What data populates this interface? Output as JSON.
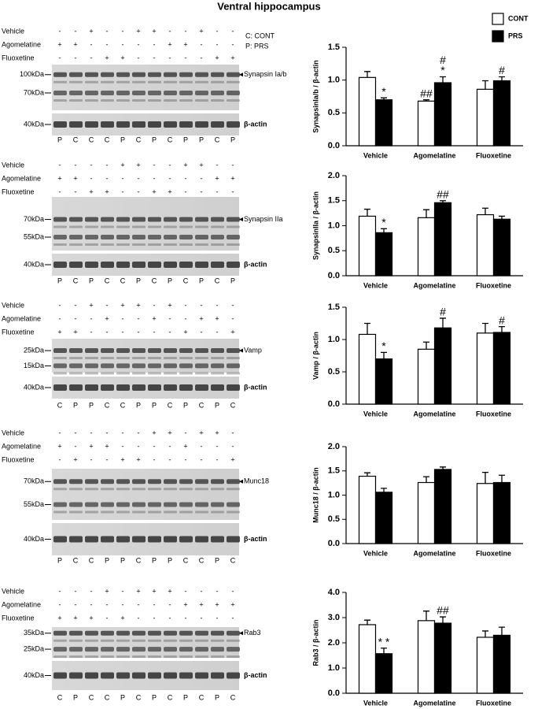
{
  "title": "Ventral hippocampus",
  "notes": [
    "C: CONT",
    "P: PRS"
  ],
  "blots": [
    {
      "rows": [
        {
          "label": "Vehicle",
          "signs": [
            "-",
            "-",
            "+",
            "-",
            "-",
            "+",
            "+",
            "-",
            "-",
            "+",
            "-",
            "-"
          ]
        },
        {
          "label": "Agomelatine",
          "signs": [
            "+",
            "+",
            "-",
            "-",
            "-",
            "-",
            "-",
            "+",
            "+",
            "-",
            "-",
            "-"
          ]
        },
        {
          "label": "Fluoxetine",
          "signs": [
            "-",
            "-",
            "-",
            "+",
            "+",
            "-",
            "-",
            "-",
            "-",
            "-",
            "+",
            "+"
          ]
        }
      ],
      "markers": [
        "100kDa",
        "70kDa"
      ],
      "protein": "Synapsin Ia/b",
      "actin_marker": "40kDa",
      "actin": "β-actin",
      "lanes": [
        "P",
        "C",
        "C",
        "C",
        "P",
        "C",
        "P",
        "C",
        "P",
        "P",
        "C",
        "P"
      ]
    },
    {
      "rows": [
        {
          "label": "Vehicle",
          "signs": [
            "-",
            "-",
            "-",
            "-",
            "+",
            "+",
            "-",
            "-",
            "+",
            "+",
            "-",
            "-"
          ]
        },
        {
          "label": "Agomelatine",
          "signs": [
            "+",
            "+",
            "-",
            "-",
            "-",
            "-",
            "-",
            "-",
            "-",
            "-",
            "+",
            "+"
          ]
        },
        {
          "label": "Fluoxetine",
          "signs": [
            "-",
            "-",
            "+",
            "+",
            "-",
            "-",
            "+",
            "+",
            "-",
            "-",
            "-",
            "-"
          ]
        }
      ],
      "markers": [
        "70kDa",
        "55kDa"
      ],
      "protein": "Synapsin IIa",
      "actin_marker": "40kDa",
      "actin": "β-actin",
      "lanes": [
        "P",
        "C",
        "P",
        "C",
        "C",
        "P",
        "C",
        "P",
        "C",
        "P",
        "C",
        "P"
      ]
    },
    {
      "rows": [
        {
          "label": "Vehicle",
          "signs": [
            "-",
            "-",
            "+",
            "-",
            "+",
            "+",
            "-",
            "+",
            "-",
            "-",
            "-",
            "-"
          ]
        },
        {
          "label": "Agomelatine",
          "signs": [
            "-",
            "-",
            "-",
            "+",
            "-",
            "-",
            "+",
            "-",
            "-",
            "+",
            "+",
            "-"
          ]
        },
        {
          "label": "Fluoxetine",
          "signs": [
            "+",
            "+",
            "-",
            "-",
            "-",
            "-",
            "-",
            "-",
            "+",
            "-",
            "-",
            "+"
          ]
        }
      ],
      "markers": [
        "25kDa",
        "15kDa"
      ],
      "protein": "Vamp",
      "actin_marker": "40kDa",
      "actin": "β-actin",
      "lanes": [
        "C",
        "P",
        "P",
        "C",
        "C",
        "P",
        "P",
        "C",
        "P",
        "C",
        "P",
        "C"
      ]
    },
    {
      "rows": [
        {
          "label": "Vehicle",
          "signs": [
            "-",
            "-",
            "-",
            "-",
            "-",
            "-",
            "+",
            "+",
            "-",
            "+",
            "+",
            "-"
          ]
        },
        {
          "label": "Agomelatine",
          "signs": [
            "+",
            "-",
            "+",
            "+",
            "-",
            "-",
            "-",
            "-",
            "+",
            "-",
            "-",
            "-"
          ]
        },
        {
          "label": "Fluoxetine",
          "signs": [
            "-",
            "+",
            "-",
            "-",
            "+",
            "+",
            "-",
            "-",
            "-",
            "-",
            "-",
            "+"
          ]
        }
      ],
      "markers": [
        "70kDa",
        "55kDa"
      ],
      "protein": "Munc18",
      "actin_marker": "40kDa",
      "actin": "β-actin",
      "lanes": [
        "P",
        "C",
        "C",
        "P",
        "P",
        "C",
        "P",
        "P",
        "C",
        "C",
        "P",
        "C"
      ]
    },
    {
      "rows": [
        {
          "label": "Vehicle",
          "signs": [
            "-",
            "-",
            "-",
            "+",
            "-",
            "+",
            "+",
            "+",
            "-",
            "-",
            "-",
            "-"
          ]
        },
        {
          "label": "Agomelatine",
          "signs": [
            "-",
            "-",
            "-",
            "-",
            "-",
            "-",
            "-",
            "-",
            "+",
            "+",
            "+",
            "+"
          ]
        },
        {
          "label": "Fluoxetine",
          "signs": [
            "+",
            "+",
            "+",
            "-",
            "+",
            "-",
            "-",
            "-",
            "-",
            "-",
            "-",
            "-"
          ]
        }
      ],
      "markers": [
        "35kDa",
        "25kDa"
      ],
      "protein": "Rab3",
      "actin_marker": "40kDa",
      "actin": "β-actin",
      "lanes": [
        "C",
        "P",
        "C",
        "C",
        "P",
        "C",
        "P",
        "C",
        "P",
        "C",
        "P",
        "C"
      ]
    }
  ],
  "chart_data": [
    {
      "type": "bar",
      "ylabel": "SynapsinIa/b / β-actin",
      "categories": [
        "Vehicle",
        "Agomelatine",
        "Fluoxetine"
      ],
      "ylim": [
        0,
        1.5
      ],
      "yticks": [
        {
          "value": 0,
          "label": "0.0"
        },
        0.5,
        {
          "value": 1,
          "label": "1.0"
        },
        1.5
      ],
      "series": [
        {
          "name": "CONT",
          "color": "#ffffff",
          "values": [
            1.04,
            0.68,
            0.86
          ],
          "errors": [
            0.09,
            0.02,
            0.13
          ],
          "marks": [
            null,
            [
              "##"
            ],
            null
          ]
        },
        {
          "name": "PRS",
          "color": "#000000",
          "values": [
            0.7,
            0.96,
            0.99
          ],
          "errors": [
            0.03,
            0.09,
            0.06
          ],
          "marks": [
            [
              "*"
            ],
            [
              "#",
              "*"
            ],
            [
              "#"
            ]
          ]
        }
      ]
    },
    {
      "type": "bar",
      "ylabel": "SynapsinIIa / β-actin",
      "categories": [
        "Vehicle",
        "Agomelatine",
        "Fluoxetine"
      ],
      "ylim": [
        0,
        2
      ],
      "yticks": [
        {
          "value": 0,
          "label": "0.0"
        },
        0.5,
        {
          "value": 1,
          "label": "1.0"
        },
        1.5,
        {
          "value": 2,
          "label": "2.0"
        }
      ],
      "series": [
        {
          "name": "CONT",
          "color": "#ffffff",
          "values": [
            1.19,
            1.16,
            1.22
          ],
          "errors": [
            0.14,
            0.16,
            0.13
          ],
          "marks": [
            null,
            null,
            null
          ]
        },
        {
          "name": "PRS",
          "color": "#000000",
          "values": [
            0.86,
            1.46,
            1.13
          ],
          "errors": [
            0.08,
            0.04,
            0.06
          ],
          "marks": [
            [
              "*"
            ],
            [
              "##"
            ],
            null
          ]
        }
      ]
    },
    {
      "type": "bar",
      "ylabel": "Vamp / β-actin",
      "categories": [
        "Vehicle",
        "Agomelatine",
        "Fluoxetine"
      ],
      "ylim": [
        0,
        1.5
      ],
      "yticks": [
        {
          "value": 0,
          "label": "0.0"
        },
        0.5,
        {
          "value": 1,
          "label": "1.0"
        },
        1.5
      ],
      "series": [
        {
          "name": "CONT",
          "color": "#ffffff",
          "values": [
            1.08,
            0.85,
            1.1
          ],
          "errors": [
            0.17,
            0.11,
            0.15
          ],
          "marks": [
            null,
            null,
            null
          ]
        },
        {
          "name": "PRS",
          "color": "#000000",
          "values": [
            0.7,
            1.18,
            1.11
          ],
          "errors": [
            0.1,
            0.15,
            0.09
          ],
          "marks": [
            [
              "*"
            ],
            [
              "#"
            ],
            [
              "#"
            ]
          ]
        }
      ]
    },
    {
      "type": "bar",
      "ylabel": "Munc18 / β-actin",
      "categories": [
        "Vehicle",
        "Agomelatine",
        "Fluoxetine"
      ],
      "ylim": [
        0,
        2
      ],
      "yticks": [
        {
          "value": 0,
          "label": "0.0"
        },
        0.5,
        {
          "value": 1,
          "label": "1.0"
        },
        1.5,
        {
          "value": 2,
          "label": "2.0"
        }
      ],
      "series": [
        {
          "name": "CONT",
          "color": "#ffffff",
          "values": [
            1.39,
            1.26,
            1.24
          ],
          "errors": [
            0.07,
            0.12,
            0.23
          ],
          "marks": [
            null,
            null,
            null
          ]
        },
        {
          "name": "PRS",
          "color": "#000000",
          "values": [
            1.06,
            1.53,
            1.26
          ],
          "errors": [
            0.08,
            0.05,
            0.15
          ],
          "marks": [
            null,
            null,
            null
          ]
        }
      ]
    },
    {
      "type": "bar",
      "ylabel": "Rab3 / β-actin",
      "categories": [
        "Vehicle",
        "Agomelatine",
        "Fluoxetine"
      ],
      "ylim": [
        0,
        4
      ],
      "yticks": [
        {
          "value": 0,
          "label": "0.0"
        },
        {
          "value": 1,
          "label": "1.0"
        },
        {
          "value": 2,
          "label": "2.0"
        },
        {
          "value": 3,
          "label": "3.0"
        },
        {
          "value": 4,
          "label": "4.0"
        }
      ],
      "series": [
        {
          "name": "CONT",
          "color": "#ffffff",
          "values": [
            2.72,
            2.88,
            2.22
          ],
          "errors": [
            0.18,
            0.38,
            0.25
          ],
          "marks": [
            null,
            null,
            null
          ]
        },
        {
          "name": "PRS",
          "color": "#000000",
          "values": [
            1.57,
            2.78,
            2.3
          ],
          "errors": [
            0.22,
            0.25,
            0.32
          ],
          "marks": [
            [
              "* *"
            ],
            [
              "##"
            ],
            null
          ]
        }
      ]
    }
  ]
}
